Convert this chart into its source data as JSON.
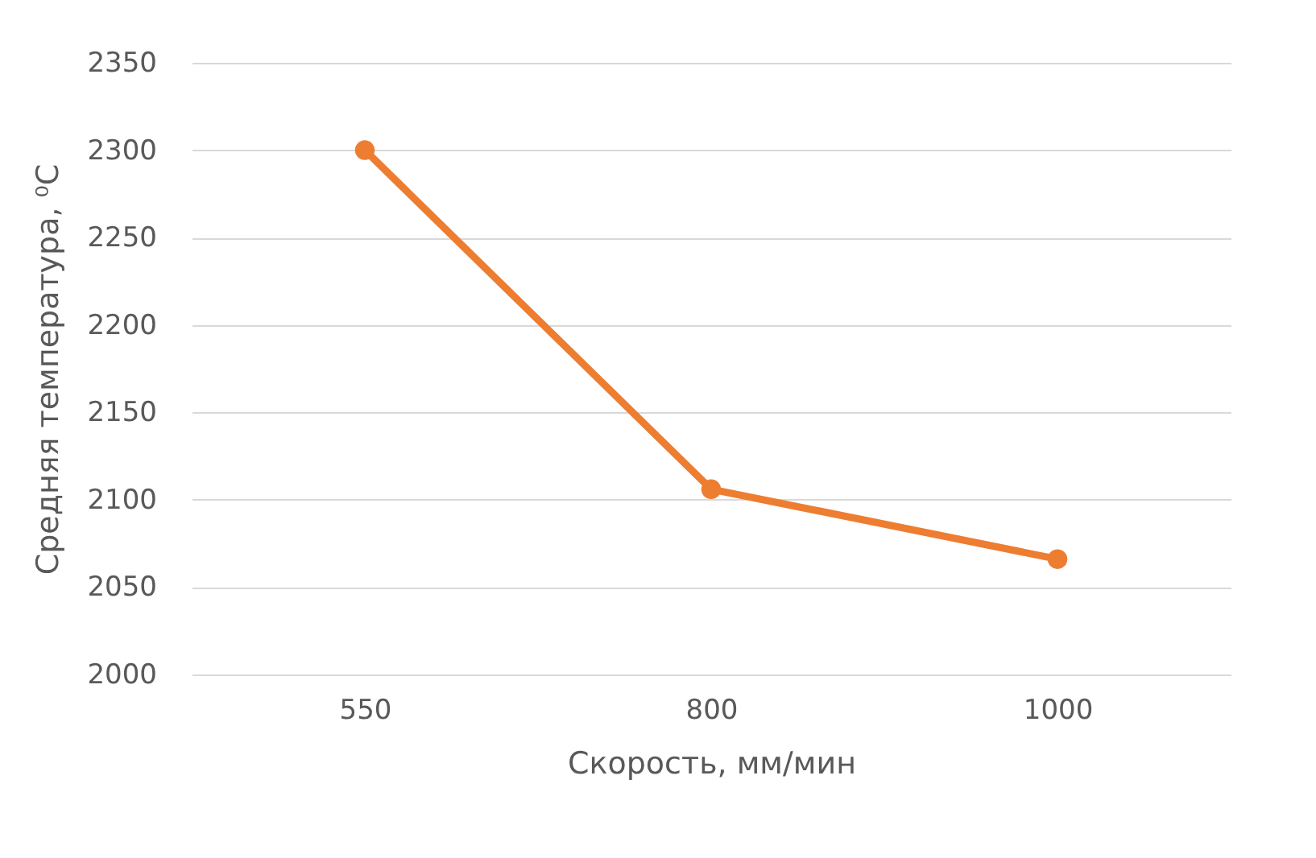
{
  "chart_data": {
    "type": "line",
    "xlabel": "Скорость, мм/мин",
    "ylabel": "Средняя температура, ⁰C",
    "categories": [
      "550",
      "800",
      "1000"
    ],
    "series": [
      {
        "color": "#ed7d31",
        "values": [
          2300,
          2106,
          2066
        ]
      }
    ],
    "ylim": [
      2000,
      2350
    ],
    "yticks": [
      2000,
      2050,
      2100,
      2150,
      2200,
      2250,
      2300,
      2350
    ],
    "grid": "y",
    "marker": "circle",
    "line_style": "solid"
  }
}
